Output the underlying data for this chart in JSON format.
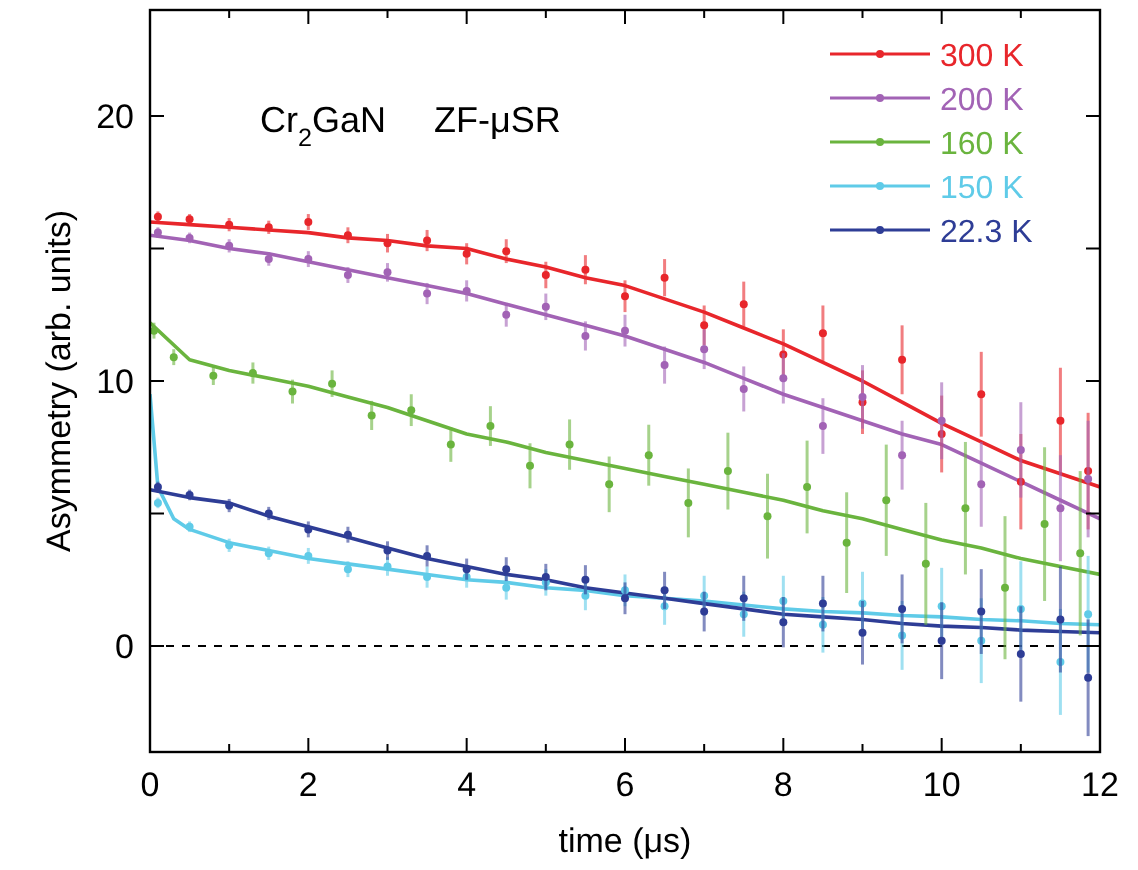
{
  "chart_data": {
    "type": "scatter",
    "xlabel": "time (μs)",
    "ylabel": "Asymmetry (arb. units)",
    "annotations": [
      "Cr$_{2}$GaN",
      "ZF-μSR"
    ],
    "xlim": [
      0,
      12
    ],
    "xticks": [
      0,
      {
        "value": 1,
        "label": null
      },
      2,
      {
        "value": 3,
        "label": null
      },
      4,
      {
        "value": 5,
        "label": null
      },
      6,
      {
        "value": 7,
        "label": null
      },
      8,
      {
        "value": 9,
        "label": null
      },
      10,
      {
        "value": 11,
        "label": null
      },
      12
    ],
    "ylim": [
      -4,
      24
    ],
    "yticks": [
      0,
      {
        "value": 5,
        "label": null
      },
      10,
      {
        "value": 15,
        "label": null
      },
      20
    ],
    "grid": false,
    "legend": "top right",
    "ref_lines": [
      {
        "axis": "y",
        "value": 0,
        "color": "#000000",
        "line_style": "dashed"
      }
    ],
    "x": [
      0.1,
      0.5,
      1,
      1.5,
      2,
      2.5,
      3,
      3.5,
      4,
      4.5,
      5,
      5.5,
      6,
      6.5,
      7,
      7.5,
      8,
      8.5,
      9,
      9.5,
      10,
      10.5,
      11,
      11.5,
      11.85
    ],
    "series": [
      {
        "name": "300 K",
        "marker": "circle",
        "color": "#e8262b",
        "values": [
          16.2,
          16.1,
          15.9,
          15.8,
          16.0,
          15.5,
          15.2,
          15.3,
          14.8,
          14.9,
          14.0,
          14.2,
          13.2,
          13.9,
          12.1,
          12.9,
          11.0,
          11.8,
          9.2,
          10.8,
          8.0,
          9.5,
          6.2,
          8.5,
          6.6
        ],
        "errors": [
          0.2,
          0.2,
          0.25,
          0.25,
          0.3,
          0.3,
          0.35,
          0.4,
          0.4,
          0.45,
          0.5,
          0.55,
          0.6,
          0.7,
          0.75,
          0.85,
          0.95,
          1.05,
          1.2,
          1.3,
          1.45,
          1.6,
          1.8,
          2,
          2.2
        ]
      },
      {
        "name": "200 K",
        "marker": "circle",
        "color": "#a263b5",
        "values": [
          15.6,
          15.4,
          15.1,
          14.6,
          14.6,
          14.0,
          14.1,
          13.3,
          13.4,
          12.5,
          12.8,
          11.7,
          11.9,
          10.6,
          11.2,
          9.7,
          10.1,
          8.3,
          9.4,
          7.2,
          8.5,
          6.1,
          7.4,
          5.2,
          6.3
        ],
        "errors": [
          0.2,
          0.2,
          0.25,
          0.25,
          0.3,
          0.3,
          0.35,
          0.4,
          0.4,
          0.45,
          0.5,
          0.55,
          0.6,
          0.7,
          0.75,
          0.85,
          0.95,
          1.05,
          1.2,
          1.3,
          1.45,
          1.6,
          1.8,
          2,
          2.2
        ]
      },
      {
        "name": "160 K",
        "marker": "circle",
        "x": [
          0.05,
          0.3,
          0.8,
          1.3,
          1.8,
          2.3,
          2.8,
          3.3,
          3.8,
          4.3,
          4.8,
          5.3,
          5.8,
          6.3,
          6.8,
          7.3,
          7.8,
          8.3,
          8.8,
          9.3,
          9.8,
          10.3,
          10.8,
          11.3,
          11.75
        ],
        "color": "#6ab43e",
        "values": [
          11.9,
          10.9,
          10.2,
          10.3,
          9.6,
          9.9,
          8.7,
          8.9,
          7.6,
          8.3,
          6.8,
          7.6,
          6.1,
          7.2,
          5.4,
          6.6,
          4.9,
          6.0,
          3.9,
          5.5,
          3.1,
          5.2,
          2.2,
          4.6,
          3.5
        ],
        "errors": [
          0.3,
          0.3,
          0.35,
          0.4,
          0.45,
          0.5,
          0.55,
          0.6,
          0.65,
          0.75,
          0.85,
          0.95,
          1.05,
          1.15,
          1.3,
          1.45,
          1.6,
          1.75,
          1.9,
          2.1,
          2.3,
          2.5,
          2.7,
          2.9,
          3.1
        ]
      },
      {
        "name": "150 K",
        "marker": "circle",
        "color": "#5fcbe8",
        "values": [
          5.4,
          4.5,
          3.8,
          3.5,
          3.4,
          2.9,
          3.0,
          2.6,
          2.6,
          2.2,
          2.4,
          1.9,
          2.1,
          1.5,
          1.9,
          1.2,
          1.7,
          0.8,
          1.6,
          0.4,
          1.5,
          0.2,
          1.4,
          -0.6,
          1.2
        ],
        "errors": [
          0.2,
          0.2,
          0.25,
          0.25,
          0.3,
          0.3,
          0.35,
          0.4,
          0.4,
          0.45,
          0.5,
          0.55,
          0.6,
          0.7,
          0.75,
          0.85,
          0.95,
          1.05,
          1.2,
          1.3,
          1.45,
          1.6,
          1.8,
          2,
          2.2
        ]
      },
      {
        "name": "22.3 K",
        "marker": "circle",
        "color": "#2e3d96",
        "values": [
          6.0,
          5.7,
          5.3,
          5.0,
          4.4,
          4.2,
          3.6,
          3.4,
          2.9,
          2.9,
          2.6,
          2.5,
          1.8,
          2.1,
          1.3,
          1.8,
          0.9,
          1.6,
          0.5,
          1.4,
          0.2,
          1.3,
          -0.3,
          1.0,
          -1.2
        ],
        "errors": [
          0.2,
          0.2,
          0.25,
          0.25,
          0.3,
          0.3,
          0.35,
          0.4,
          0.4,
          0.45,
          0.5,
          0.55,
          0.6,
          0.7,
          0.75,
          0.85,
          0.95,
          1.05,
          1.2,
          1.3,
          1.45,
          1.6,
          1.8,
          2,
          2.2
        ]
      },
      {
        "type": "line",
        "color": "#e8262b",
        "x": [
          0,
          0.5,
          1,
          1.5,
          2,
          2.5,
          3,
          3.5,
          4,
          4.5,
          5,
          5.5,
          6,
          6.5,
          7,
          7.5,
          8,
          8.5,
          9,
          9.5,
          10,
          10.5,
          11,
          11.5,
          12
        ],
        "values": [
          16.0,
          15.9,
          15.8,
          15.7,
          15.6,
          15.4,
          15.3,
          15.1,
          15.0,
          14.6,
          14.3,
          13.9,
          13.6,
          13.1,
          12.6,
          12.0,
          11.4,
          10.7,
          10.0,
          9.2,
          8.4,
          7.7,
          7.0,
          6.5,
          6.0
        ]
      },
      {
        "type": "line",
        "color": "#a263b5",
        "x": [
          0,
          0.5,
          1,
          1.5,
          2,
          2.5,
          3,
          3.5,
          4,
          4.5,
          5,
          5.5,
          6,
          6.5,
          7,
          7.5,
          8,
          8.5,
          9,
          9.5,
          10,
          10.5,
          11,
          11.5,
          12
        ],
        "values": [
          15.5,
          15.3,
          15.0,
          14.8,
          14.5,
          14.2,
          13.9,
          13.6,
          13.3,
          12.9,
          12.5,
          12.1,
          11.7,
          11.2,
          10.7,
          10.1,
          9.5,
          9.0,
          8.5,
          8.0,
          7.6,
          6.9,
          6.2,
          5.5,
          4.8
        ]
      },
      {
        "type": "line",
        "color": "#6ab43e",
        "x": [
          0,
          0.5,
          1,
          1.5,
          2,
          2.5,
          3,
          3.5,
          4,
          4.5,
          5,
          5.5,
          6,
          6.5,
          7,
          7.5,
          8,
          8.5,
          9,
          9.5,
          10,
          10.5,
          11,
          11.5,
          12
        ],
        "values": [
          12.2,
          10.8,
          10.4,
          10.1,
          9.8,
          9.4,
          9.0,
          8.5,
          8.0,
          7.7,
          7.3,
          7.0,
          6.7,
          6.4,
          6.1,
          5.8,
          5.5,
          5.1,
          4.8,
          4.4,
          4.0,
          3.7,
          3.3,
          3.0,
          2.7
        ]
      },
      {
        "type": "line",
        "color": "#5fcbe8",
        "x": [
          0,
          0.1,
          0.3,
          0.5,
          1,
          1.5,
          2,
          2.5,
          3,
          3.5,
          4,
          4.5,
          5,
          5.5,
          6,
          6.5,
          7,
          7.5,
          8,
          8.5,
          9,
          9.5,
          10,
          10.5,
          11,
          11.5,
          12
        ],
        "values": [
          9.5,
          6.0,
          4.8,
          4.4,
          3.9,
          3.6,
          3.3,
          3.1,
          2.9,
          2.7,
          2.5,
          2.4,
          2.2,
          2.1,
          1.9,
          1.8,
          1.7,
          1.55,
          1.4,
          1.3,
          1.25,
          1.15,
          1.1,
          1.0,
          0.95,
          0.85,
          0.8
        ]
      },
      {
        "type": "line",
        "color": "#2e3d96",
        "x": [
          0,
          0.5,
          1,
          1.5,
          2,
          2.5,
          3,
          3.5,
          4,
          4.5,
          5,
          5.5,
          6,
          6.5,
          7,
          7.5,
          8,
          8.5,
          9,
          9.5,
          10,
          10.5,
          11,
          11.5,
          12
        ],
        "values": [
          5.9,
          5.6,
          5.4,
          4.9,
          4.5,
          4.1,
          3.7,
          3.3,
          3.0,
          2.7,
          2.5,
          2.2,
          2.0,
          1.8,
          1.6,
          1.4,
          1.2,
          1.1,
          1.0,
          0.85,
          0.75,
          0.7,
          0.6,
          0.55,
          0.5
        ]
      }
    ]
  }
}
